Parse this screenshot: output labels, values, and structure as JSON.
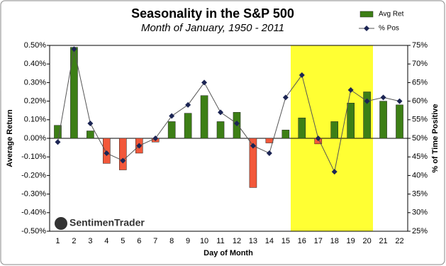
{
  "chart_data": {
    "type": "bar",
    "title": "Seasonality in the S&P 500",
    "subtitle": "Month of January, 1950 - 2011",
    "x_label": "Day of Month",
    "y_label": "Average Return",
    "y2_label": "% of Time Positive",
    "logo": "SentimenTrader",
    "categories": [
      "1",
      "2",
      "3",
      "4",
      "5",
      "6",
      "7",
      "8",
      "9",
      "10",
      "11",
      "12",
      "13",
      "14",
      "15",
      "16",
      "17",
      "18",
      "19",
      "20",
      "21",
      "22"
    ],
    "series": [
      {
        "name": "Avg Ret",
        "type": "bar",
        "color": "#3d7f16",
        "negative_color": "#f2583a",
        "values": [
          0.07,
          0.49,
          0.04,
          -0.135,
          -0.17,
          -0.08,
          -0.02,
          0.09,
          0.135,
          0.23,
          0.09,
          0.14,
          -0.265,
          -0.025,
          0.045,
          0.11,
          -0.03,
          0.09,
          0.19,
          0.25,
          0.2,
          0.18
        ]
      },
      {
        "name": "% Pos",
        "type": "line",
        "axis": "y2",
        "color": "#1c2554",
        "values": [
          49,
          74,
          54,
          46,
          44,
          48,
          50,
          56,
          59,
          65,
          57,
          54,
          48,
          46,
          61,
          67,
          50,
          41,
          63,
          60,
          61,
          60
        ]
      }
    ],
    "ylim": [
      -0.5,
      0.5
    ],
    "yticks": [
      {
        "value": -0.5,
        "label": "-0.50%"
      },
      {
        "value": -0.4,
        "label": "-0.40%"
      },
      {
        "value": -0.3,
        "label": "-0.30%"
      },
      {
        "value": -0.2,
        "label": "-0.20%"
      },
      {
        "value": -0.1,
        "label": "-0.10%"
      },
      {
        "value": 0,
        "label": "0.00%"
      },
      {
        "value": 0.1,
        "label": "0.10%"
      },
      {
        "value": 0.2,
        "label": "0.20%"
      },
      {
        "value": 0.3,
        "label": "0.30%"
      },
      {
        "value": 0.4,
        "label": "0.40%"
      },
      {
        "value": 0.5,
        "label": "0.50%"
      }
    ],
    "y2lim": [
      25,
      75
    ],
    "y2ticks": [
      {
        "value": 25,
        "label": "25%"
      },
      {
        "value": 30,
        "label": "30%"
      },
      {
        "value": 35,
        "label": "35%"
      },
      {
        "value": 40,
        "label": "40%"
      },
      {
        "value": 45,
        "label": "45%"
      },
      {
        "value": 50,
        "label": "50%"
      },
      {
        "value": 55,
        "label": "55%"
      },
      {
        "value": 60,
        "label": "60%"
      },
      {
        "value": 65,
        "label": "65%"
      },
      {
        "value": 70,
        "label": "70%"
      },
      {
        "value": 75,
        "label": "75%"
      }
    ],
    "legend": "top-right"
  }
}
